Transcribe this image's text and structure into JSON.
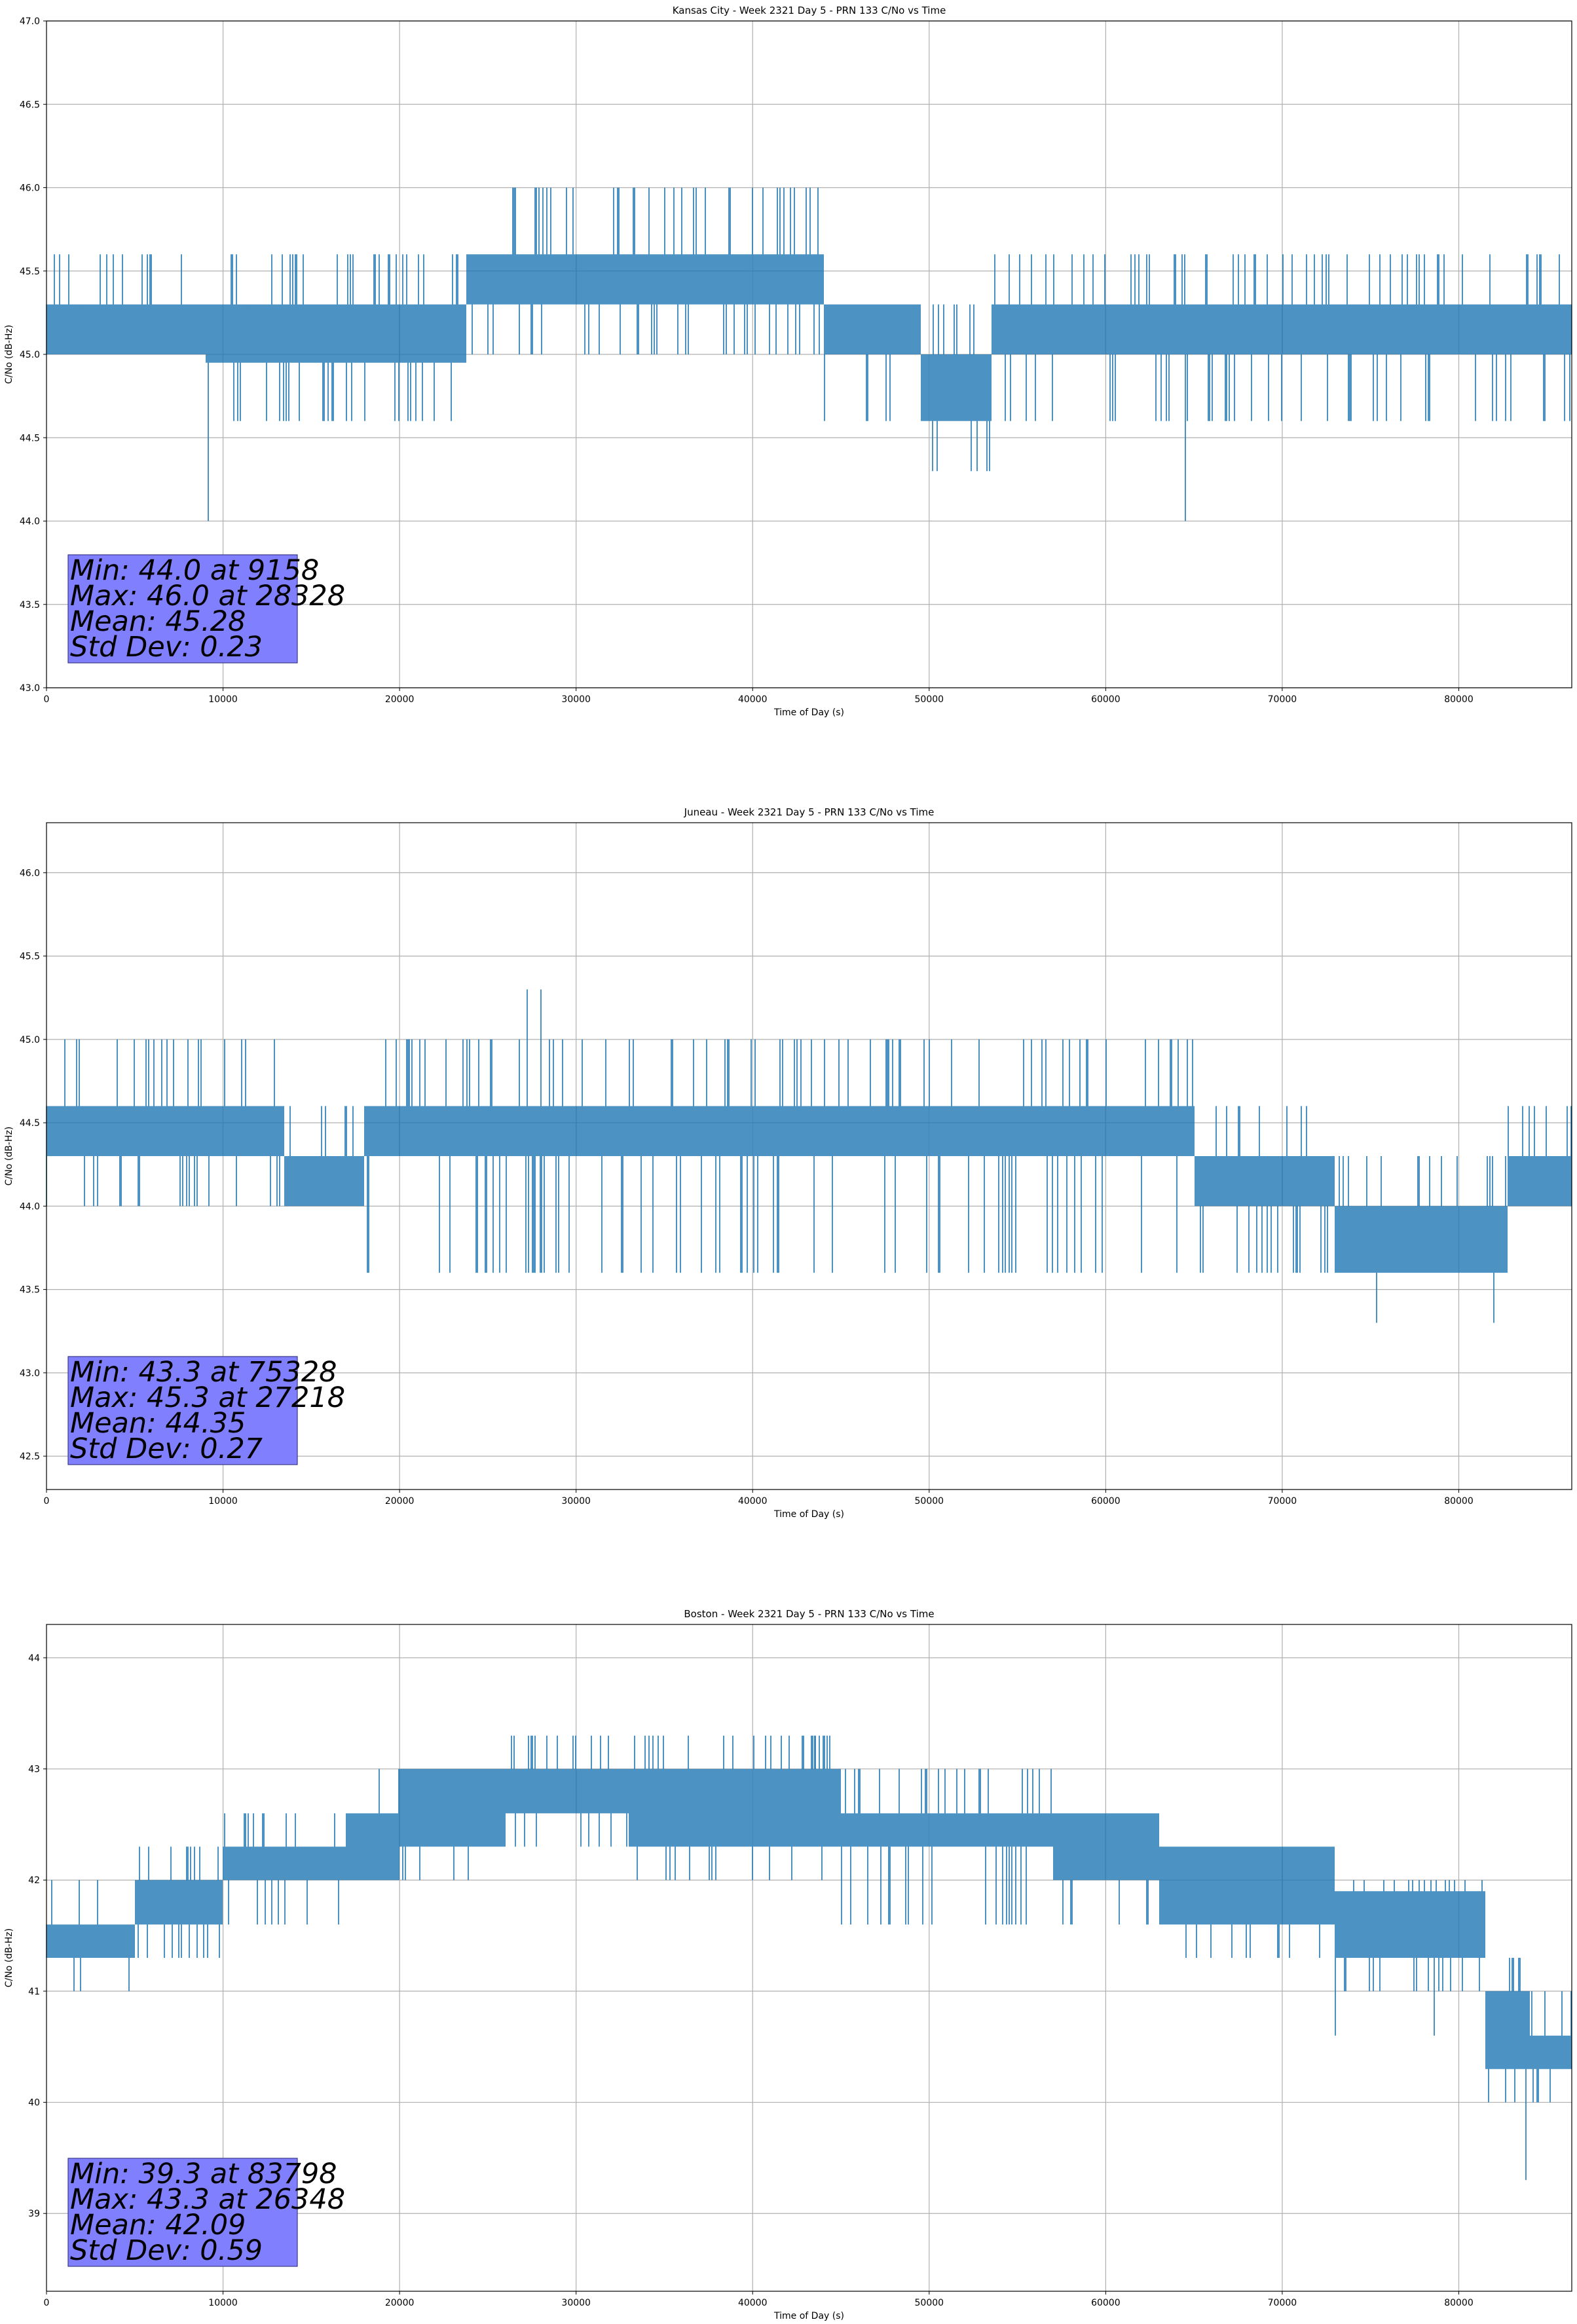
{
  "chart_data": [
    {
      "type": "line",
      "title": "Kansas City - Week 2321 Day 5 - PRN 133 C/No vs Time",
      "xlabel": "Time of Day (s)",
      "ylabel": "C/No (dB-Hz)",
      "xlim": [
        0,
        86400
      ],
      "ylim": [
        43.0,
        47.0
      ],
      "xticks": [
        0,
        10000,
        20000,
        30000,
        40000,
        50000,
        60000,
        70000,
        80000
      ],
      "yticks": [
        "43.0",
        "43.5",
        "44.0",
        "44.5",
        "45.0",
        "45.5",
        "46.0",
        "46.5",
        "47.0"
      ],
      "grid": true,
      "series_color": "#1f77b4",
      "segments": [
        {
          "x": [
            0,
            9000
          ],
          "band": [
            45.0,
            45.3
          ],
          "low": 45.0,
          "high": 45.6
        },
        {
          "x": [
            9000,
            23800
          ],
          "band": [
            44.95,
            45.3
          ],
          "low": 44.6,
          "high": 45.6
        },
        {
          "x": [
            23800,
            44000
          ],
          "band": [
            45.3,
            45.6
          ],
          "low": 45.0,
          "high": 46.0
        },
        {
          "x": [
            44000,
            49500
          ],
          "band": [
            45.0,
            45.3
          ],
          "low": 44.6,
          "high": 45.3
        },
        {
          "x": [
            49500,
            53500
          ],
          "band": [
            44.6,
            45.0
          ],
          "low": 44.3,
          "high": 45.3
        },
        {
          "x": [
            53500,
            86400
          ],
          "band": [
            45.0,
            45.3
          ],
          "low": 44.6,
          "high": 45.6
        }
      ],
      "spikes": [
        [
          9158,
          44.0
        ],
        [
          64500,
          44.0
        ],
        [
          50200,
          44.3
        ],
        [
          52700,
          44.3
        ],
        [
          28328,
          46.0
        ],
        [
          40000,
          46.0
        ]
      ],
      "stats": {
        "min": "Min: 44.0 at 9158",
        "max": "Max: 46.0 at 28328",
        "mean": "Mean: 45.28",
        "std": "Std Dev: 0.23"
      },
      "stats_box_color": "#8080ff"
    },
    {
      "type": "line",
      "title": "Juneau - Week 2321 Day 5 - PRN 133 C/No vs Time",
      "xlabel": "Time of Day (s)",
      "ylabel": "C/No (dB-Hz)",
      "xlim": [
        0,
        86400
      ],
      "ylim": [
        42.3,
        46.3
      ],
      "xticks": [
        0,
        10000,
        20000,
        30000,
        40000,
        50000,
        60000,
        70000,
        80000
      ],
      "yticks": [
        "42.5",
        "43.0",
        "43.5",
        "44.0",
        "44.5",
        "45.0",
        "45.5",
        "46.0"
      ],
      "grid": true,
      "series_color": "#1f77b4",
      "segments": [
        {
          "x": [
            0,
            13500
          ],
          "band": [
            44.3,
            44.6
          ],
          "low": 44.0,
          "high": 45.0
        },
        {
          "x": [
            13500,
            18000
          ],
          "band": [
            44.0,
            44.3
          ],
          "low": 44.0,
          "high": 44.6
        },
        {
          "x": [
            18000,
            65000
          ],
          "band": [
            44.3,
            44.6
          ],
          "low": 43.6,
          "high": 45.0
        },
        {
          "x": [
            65000,
            73000
          ],
          "band": [
            44.0,
            44.3
          ],
          "low": 43.6,
          "high": 44.6
        },
        {
          "x": [
            73000,
            82800
          ],
          "band": [
            43.6,
            44.0
          ],
          "low": 43.6,
          "high": 44.3
        },
        {
          "x": [
            82800,
            86400
          ],
          "band": [
            44.0,
            44.3
          ],
          "low": 44.0,
          "high": 44.6
        }
      ],
      "spikes": [
        [
          75328,
          43.3
        ],
        [
          82000,
          43.3
        ],
        [
          27218,
          45.3
        ],
        [
          28000,
          45.3
        ]
      ],
      "stats": {
        "min": "Min: 43.3 at 75328",
        "max": "Max: 45.3 at 27218",
        "mean": "Mean: 44.35",
        "std": "Std Dev: 0.27"
      },
      "stats_box_color": "#8080ff"
    },
    {
      "type": "line",
      "title": "Boston - Week 2321 Day 5 - PRN 133 C/No vs Time",
      "xlabel": "Time of Day (s)",
      "ylabel": "C/No (dB-Hz)",
      "xlim": [
        0,
        86400
      ],
      "ylim": [
        38.3,
        44.3
      ],
      "xticks": [
        0,
        10000,
        20000,
        30000,
        40000,
        50000,
        60000,
        70000,
        80000
      ],
      "yticks": [
        "39",
        "40",
        "41",
        "42",
        "43",
        "44"
      ],
      "grid": true,
      "series_color": "#1f77b4",
      "segments": [
        {
          "x": [
            0,
            5000
          ],
          "band": [
            41.3,
            41.6
          ],
          "low": 41.0,
          "high": 42.0
        },
        {
          "x": [
            5000,
            10000
          ],
          "band": [
            41.6,
            42.0
          ],
          "low": 41.3,
          "high": 42.3
        },
        {
          "x": [
            10000,
            17000
          ],
          "band": [
            42.0,
            42.3
          ],
          "low": 41.6,
          "high": 42.6
        },
        {
          "x": [
            17000,
            20000
          ],
          "band": [
            42.0,
            42.6
          ],
          "low": 42.0,
          "high": 43.0
        },
        {
          "x": [
            20000,
            26000
          ],
          "band": [
            42.3,
            43.0
          ],
          "low": 42.0,
          "high": 43.0
        },
        {
          "x": [
            26000,
            33000
          ],
          "band": [
            42.6,
            43.0
          ],
          "low": 42.3,
          "high": 43.3
        },
        {
          "x": [
            33000,
            45000
          ],
          "band": [
            42.3,
            43.0
          ],
          "low": 42.0,
          "high": 43.3
        },
        {
          "x": [
            45000,
            57000
          ],
          "band": [
            42.3,
            42.6
          ],
          "low": 41.6,
          "high": 43.0
        },
        {
          "x": [
            57000,
            63000
          ],
          "band": [
            42.0,
            42.6
          ],
          "low": 41.6,
          "high": 42.6
        },
        {
          "x": [
            63000,
            73000
          ],
          "band": [
            41.6,
            42.3
          ],
          "low": 41.3,
          "high": 42.3
        },
        {
          "x": [
            73000,
            81500
          ],
          "band": [
            41.3,
            41.9
          ],
          "low": 41.0,
          "high": 42.0
        },
        {
          "x": [
            81500,
            84000
          ],
          "band": [
            40.3,
            41.0
          ],
          "low": 40.0,
          "high": 41.3
        },
        {
          "x": [
            84000,
            86400
          ],
          "band": [
            40.3,
            40.6
          ],
          "low": 40.0,
          "high": 41.0
        }
      ],
      "spikes": [
        [
          83798,
          39.3
        ],
        [
          26348,
          43.3
        ],
        [
          43500,
          43.3
        ],
        [
          73000,
          40.6
        ],
        [
          78600,
          40.6
        ]
      ],
      "stats": {
        "min": "Min: 39.3 at 83798",
        "max": "Max: 43.3 at 26348",
        "mean": "Mean: 42.09",
        "std": "Std Dev: 0.59"
      },
      "stats_box_color": "#8080ff"
    }
  ]
}
